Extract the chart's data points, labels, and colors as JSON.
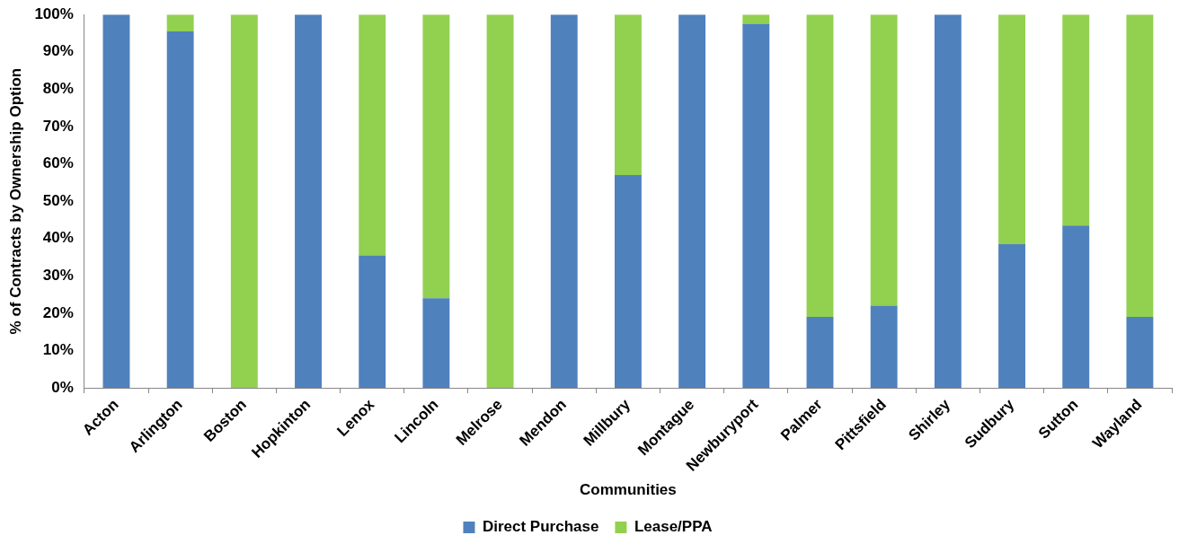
{
  "chart_data": {
    "type": "bar",
    "stacked": true,
    "xlabel": "Communities",
    "ylabel": "% of Contracts by Ownership Option",
    "categories": [
      "Acton",
      "Arlington",
      "Boston",
      "Hopkinton",
      "Lenox",
      "Lincoln",
      "Melrose",
      "Mendon",
      "Millbury",
      "Montague",
      "Newburyport",
      "Palmer",
      "Pittsfield",
      "Shirley",
      "Sudbury",
      "Sutton",
      "Wayland"
    ],
    "series": [
      {
        "name": "Direct Purchase",
        "color": "#4f81bd",
        "values": [
          100,
          95.5,
          0,
          100,
          35.5,
          24,
          0,
          100,
          57,
          100,
          97.5,
          19,
          22,
          100,
          38.5,
          43.5,
          19
        ]
      },
      {
        "name": "Lease/PPA",
        "color": "#92d050",
        "values": [
          0,
          4.5,
          100,
          0,
          64.5,
          76,
          100,
          0,
          43,
          0,
          2.5,
          81,
          78,
          0,
          61.5,
          56.5,
          81
        ]
      }
    ],
    "ylim": [
      0,
      100
    ],
    "yticks": [
      {
        "value": 0,
        "label": "0%"
      },
      {
        "value": 10,
        "label": "10%"
      },
      {
        "value": 20,
        "label": "20%"
      },
      {
        "value": 30,
        "label": "30%"
      },
      {
        "value": 40,
        "label": "40%"
      },
      {
        "value": 50,
        "label": "50%"
      },
      {
        "value": 60,
        "label": "60%"
      },
      {
        "value": 70,
        "label": "70%"
      },
      {
        "value": 80,
        "label": "80%"
      },
      {
        "value": 90,
        "label": "90%"
      },
      {
        "value": 100,
        "label": "100%"
      }
    ],
    "grid": false,
    "legend": "bottom"
  }
}
